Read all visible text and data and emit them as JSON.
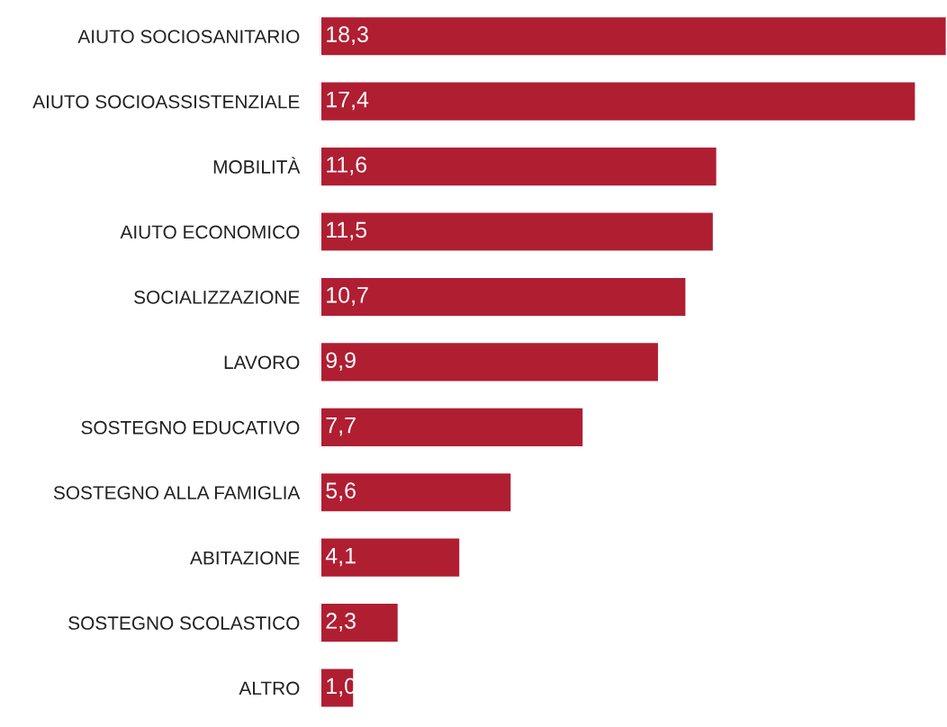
{
  "chart_data": {
    "type": "bar",
    "orientation": "horizontal",
    "data_labels": true,
    "grid": false,
    "legend": false,
    "color": "#b01e32",
    "categories": [
      "AIUTO SOCIOSANITARIO",
      "AIUTO SOCIOASSISTENZIALE",
      "MOBILITÀ",
      "AIUTO ECONOMICO",
      "SOCIALIZZAZIONE",
      "LAVORO",
      "SOSTEGNO EDUCATIVO",
      "SOSTEGNO ALLA FAMIGLIA",
      "ABITAZIONE",
      "SOSTEGNO SCOLASTICO",
      "ALTRO"
    ],
    "values": [
      18.3,
      17.4,
      11.6,
      11.5,
      10.7,
      9.9,
      7.7,
      5.6,
      4.1,
      2.3,
      1.0
    ],
    "value_labels": [
      "18,3",
      "17,4",
      "11,6",
      "11,5",
      "10,7",
      "9,9",
      "7,7",
      "5,6",
      "4,1",
      "2,3",
      "1,0"
    ]
  }
}
